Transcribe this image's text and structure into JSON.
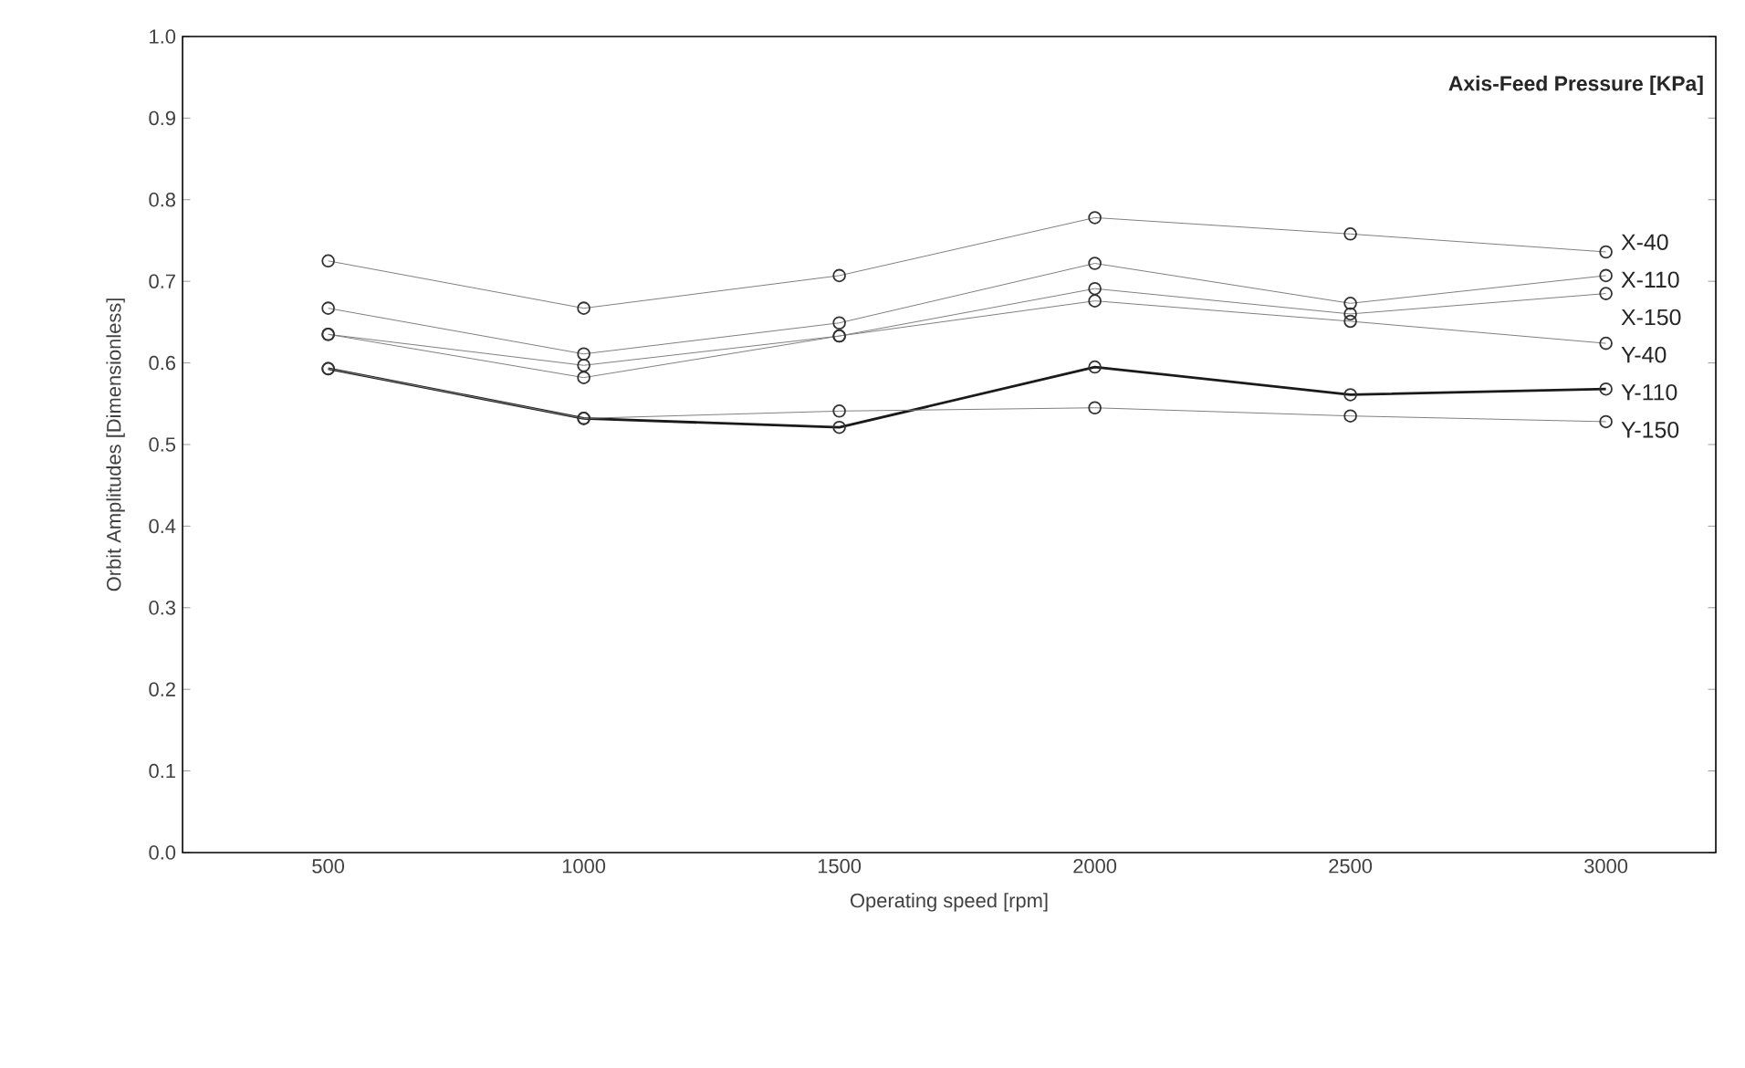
{
  "chart_data": {
    "type": "line",
    "xlabel": "Operating speed [rpm]",
    "ylabel": "Orbit Amplitudes [Dimensionless]",
    "legend_title": "Axis-Feed Pressure [KPa]",
    "x": [
      500,
      1000,
      1500,
      2000,
      2500,
      3000
    ],
    "series": [
      {
        "name": "X-40",
        "color": "#808080",
        "values": [
          0.725,
          0.667,
          0.707,
          0.778,
          0.758,
          0.736
        ]
      },
      {
        "name": "X-110",
        "color": "#808080",
        "values": [
          0.667,
          0.611,
          0.649,
          0.722,
          0.673,
          0.707
        ]
      },
      {
        "name": "X-150",
        "color": "#808080",
        "values": [
          0.635,
          0.597,
          0.633,
          0.691,
          0.66,
          0.685
        ]
      },
      {
        "name": "Y-40",
        "color": "#808080",
        "values": [
          0.635,
          0.582,
          0.633,
          0.676,
          0.651,
          0.624
        ]
      },
      {
        "name": "Y-110",
        "color": "#1a1a1a",
        "values": [
          0.593,
          0.532,
          0.521,
          0.595,
          0.561,
          0.568
        ]
      },
      {
        "name": "Y-150",
        "color": "#808080",
        "values": [
          0.593,
          0.532,
          0.541,
          0.545,
          0.535,
          0.528
        ]
      }
    ],
    "xlim": [
      215,
      3215
    ],
    "xticks": [
      500,
      1000,
      1500,
      2000,
      2500,
      3000
    ],
    "ylim": [
      0,
      1
    ],
    "yticks": [
      {
        "value": 0,
        "label": "0.0"
      },
      {
        "value": 0.1,
        "label": "0.1"
      },
      {
        "value": 0.2,
        "label": "0.2"
      },
      {
        "value": 0.3,
        "label": "0.3"
      },
      {
        "value": 0.4,
        "label": "0.4"
      },
      {
        "value": 0.5,
        "label": "0.5"
      },
      {
        "value": 0.6,
        "label": "0.6"
      },
      {
        "value": 0.7,
        "label": "0.7"
      },
      {
        "value": 0.8,
        "label": "0.8"
      },
      {
        "value": 0.9,
        "label": "0.9"
      },
      {
        "value": 1,
        "label": "1.0"
      }
    ],
    "grid": false,
    "legend": false,
    "marker": "circle",
    "line_style": "solid"
  }
}
